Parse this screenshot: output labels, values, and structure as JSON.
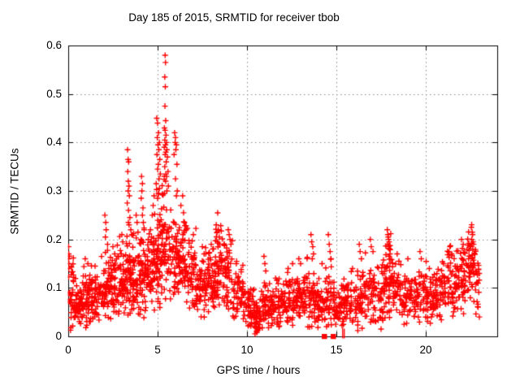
{
  "chart_data": {
    "type": "scatter",
    "title": "Day 185 of 2015, SRMTID for receiver tbob",
    "xlabel": "GPS time / hours",
    "ylabel": "SRMTID / TECUs",
    "xlim": [
      0,
      24
    ],
    "ylim": [
      0,
      0.6
    ],
    "x_ticks": [
      0,
      5,
      10,
      15,
      20
    ],
    "y_ticks": [
      0,
      0.1,
      0.2,
      0.3,
      0.4,
      0.5,
      0.6
    ],
    "grid": "dotted at every labeled tick",
    "legend": "none",
    "marker": "plus",
    "marker_color": "#ff0000",
    "grid_color": "#8a8a8a",
    "border_color": "#000000",
    "seed": 7,
    "band_segments_comment": "dense +-marker band: [t_start, t_end, center_TECU, half_spread_TECU, n_points]",
    "band_segments": [
      [
        0.0,
        0.3,
        0.085,
        0.045,
        34
      ],
      [
        0.3,
        0.8,
        0.06,
        0.028,
        50
      ],
      [
        0.8,
        1.3,
        0.08,
        0.035,
        50
      ],
      [
        1.3,
        1.8,
        0.072,
        0.03,
        48
      ],
      [
        1.8,
        2.3,
        0.095,
        0.042,
        50
      ],
      [
        2.3,
        2.8,
        0.1,
        0.042,
        50
      ],
      [
        2.8,
        3.2,
        0.11,
        0.045,
        45
      ],
      [
        3.2,
        3.6,
        0.125,
        0.055,
        48
      ],
      [
        3.6,
        4.0,
        0.115,
        0.05,
        46
      ],
      [
        4.0,
        4.4,
        0.125,
        0.05,
        48
      ],
      [
        4.4,
        4.8,
        0.14,
        0.05,
        48
      ],
      [
        4.8,
        5.2,
        0.165,
        0.065,
        55
      ],
      [
        5.2,
        5.6,
        0.195,
        0.075,
        55
      ],
      [
        5.6,
        6.2,
        0.165,
        0.065,
        60
      ],
      [
        6.2,
        6.7,
        0.145,
        0.05,
        52
      ],
      [
        6.7,
        7.2,
        0.125,
        0.045,
        50
      ],
      [
        7.2,
        7.8,
        0.105,
        0.04,
        52
      ],
      [
        7.8,
        8.2,
        0.115,
        0.045,
        45
      ],
      [
        8.2,
        8.6,
        0.145,
        0.05,
        48
      ],
      [
        8.6,
        9.2,
        0.125,
        0.048,
        52
      ],
      [
        9.2,
        9.8,
        0.085,
        0.035,
        48
      ],
      [
        9.8,
        10.4,
        0.06,
        0.028,
        46
      ],
      [
        10.4,
        10.8,
        0.038,
        0.024,
        38
      ],
      [
        10.8,
        11.3,
        0.06,
        0.028,
        46
      ],
      [
        11.3,
        12.0,
        0.065,
        0.028,
        56
      ],
      [
        12.0,
        12.6,
        0.068,
        0.03,
        50
      ],
      [
        12.6,
        13.2,
        0.075,
        0.033,
        50
      ],
      [
        13.2,
        13.8,
        0.08,
        0.038,
        50
      ],
      [
        13.8,
        14.4,
        0.068,
        0.032,
        46
      ],
      [
        14.4,
        14.9,
        0.08,
        0.042,
        40
      ],
      [
        14.9,
        15.4,
        0.058,
        0.028,
        36
      ],
      [
        15.4,
        16.0,
        0.068,
        0.032,
        48
      ],
      [
        16.0,
        16.6,
        0.078,
        0.038,
        46
      ],
      [
        16.6,
        17.2,
        0.088,
        0.04,
        46
      ],
      [
        17.2,
        17.7,
        0.085,
        0.04,
        40
      ],
      [
        17.7,
        18.1,
        0.12,
        0.05,
        44
      ],
      [
        18.1,
        18.7,
        0.09,
        0.04,
        46
      ],
      [
        18.7,
        19.3,
        0.08,
        0.035,
        46
      ],
      [
        19.3,
        19.9,
        0.085,
        0.035,
        46
      ],
      [
        19.9,
        20.6,
        0.08,
        0.035,
        52
      ],
      [
        20.6,
        21.2,
        0.09,
        0.04,
        46
      ],
      [
        21.2,
        21.7,
        0.1,
        0.044,
        44
      ],
      [
        21.7,
        22.3,
        0.115,
        0.048,
        50
      ],
      [
        22.3,
        22.8,
        0.145,
        0.052,
        50
      ],
      [
        22.8,
        23.0,
        0.1,
        0.04,
        18
      ]
    ],
    "spike_points_comment": "explicit [t, TECU] outlier/spike markers read off the plot",
    "spike_points": [
      [
        0.02,
        0.185
      ],
      [
        0.03,
        0.17
      ],
      [
        0.02,
        0.16
      ],
      [
        0.04,
        0.15
      ],
      [
        0.03,
        0.14
      ],
      [
        0.95,
        0.16
      ],
      [
        1.1,
        0.15
      ],
      [
        1.5,
        0.145
      ],
      [
        2.05,
        0.25
      ],
      [
        2.1,
        0.235
      ],
      [
        2.12,
        0.22
      ],
      [
        2.08,
        0.205
      ],
      [
        2.2,
        0.19
      ],
      [
        2.5,
        0.185
      ],
      [
        2.6,
        0.17
      ],
      [
        3.0,
        0.21
      ],
      [
        3.05,
        0.195
      ],
      [
        3.32,
        0.385
      ],
      [
        3.35,
        0.365
      ],
      [
        3.38,
        0.36
      ],
      [
        3.33,
        0.34
      ],
      [
        3.36,
        0.32
      ],
      [
        3.4,
        0.31
      ],
      [
        3.35,
        0.3
      ],
      [
        3.42,
        0.29
      ],
      [
        3.3,
        0.275
      ],
      [
        3.37,
        0.26
      ],
      [
        3.45,
        0.245
      ],
      [
        3.4,
        0.23
      ],
      [
        3.5,
        0.22
      ],
      [
        3.55,
        0.21
      ],
      [
        3.8,
        0.25
      ],
      [
        3.85,
        0.235
      ],
      [
        3.9,
        0.215
      ],
      [
        4.1,
        0.33
      ],
      [
        4.15,
        0.315
      ],
      [
        4.12,
        0.3
      ],
      [
        4.08,
        0.285
      ],
      [
        4.18,
        0.265
      ],
      [
        4.15,
        0.25
      ],
      [
        4.2,
        0.235
      ],
      [
        4.25,
        0.22
      ],
      [
        4.6,
        0.22
      ],
      [
        4.7,
        0.25
      ],
      [
        4.75,
        0.27
      ],
      [
        4.8,
        0.29
      ],
      [
        4.95,
        0.45
      ],
      [
        5.0,
        0.44
      ],
      [
        5.05,
        0.42
      ],
      [
        4.98,
        0.41
      ],
      [
        5.1,
        0.4
      ],
      [
        5.02,
        0.395
      ],
      [
        5.07,
        0.385
      ],
      [
        4.96,
        0.375
      ],
      [
        5.12,
        0.365
      ],
      [
        5.04,
        0.355
      ],
      [
        5.0,
        0.345
      ],
      [
        5.15,
        0.335
      ],
      [
        5.08,
        0.325
      ],
      [
        4.92,
        0.315
      ],
      [
        5.1,
        0.305
      ],
      [
        5.05,
        0.295
      ],
      [
        5.0,
        0.285
      ],
      [
        5.42,
        0.58
      ],
      [
        5.44,
        0.565
      ],
      [
        5.4,
        0.535
      ],
      [
        5.43,
        0.515
      ],
      [
        5.41,
        0.475
      ],
      [
        5.45,
        0.445
      ],
      [
        5.38,
        0.43
      ],
      [
        5.42,
        0.425
      ],
      [
        5.47,
        0.415
      ],
      [
        5.4,
        0.405
      ],
      [
        5.5,
        0.4
      ],
      [
        5.44,
        0.395
      ],
      [
        5.37,
        0.39
      ],
      [
        5.52,
        0.385
      ],
      [
        5.46,
        0.38
      ],
      [
        5.42,
        0.375
      ],
      [
        5.55,
        0.37
      ],
      [
        5.48,
        0.36
      ],
      [
        5.4,
        0.35
      ],
      [
        5.58,
        0.34
      ],
      [
        5.5,
        0.33
      ],
      [
        5.45,
        0.32
      ],
      [
        5.6,
        0.31
      ],
      [
        5.52,
        0.3
      ],
      [
        5.95,
        0.42
      ],
      [
        6.0,
        0.41
      ],
      [
        5.98,
        0.4
      ],
      [
        6.05,
        0.395
      ],
      [
        6.02,
        0.385
      ],
      [
        5.92,
        0.375
      ],
      [
        6.08,
        0.355
      ],
      [
        6.0,
        0.325
      ],
      [
        6.1,
        0.3
      ],
      [
        6.05,
        0.29
      ],
      [
        6.3,
        0.27
      ],
      [
        6.4,
        0.29
      ],
      [
        6.45,
        0.255
      ],
      [
        6.5,
        0.235
      ],
      [
        6.6,
        0.22
      ],
      [
        7.0,
        0.21
      ],
      [
        7.5,
        0.185
      ],
      [
        7.6,
        0.17
      ],
      [
        8.0,
        0.19
      ],
      [
        8.28,
        0.23
      ],
      [
        8.32,
        0.215
      ],
      [
        8.4,
        0.22
      ],
      [
        8.45,
        0.205
      ],
      [
        8.35,
        0.195
      ],
      [
        8.95,
        0.22
      ],
      [
        9.0,
        0.21
      ],
      [
        9.05,
        0.2
      ],
      [
        9.1,
        0.19
      ],
      [
        9.4,
        0.15
      ],
      [
        10.95,
        0.165
      ],
      [
        11.0,
        0.15
      ],
      [
        11.05,
        0.135
      ],
      [
        11.6,
        0.12
      ],
      [
        12.3,
        0.14
      ],
      [
        12.55,
        0.15
      ],
      [
        12.9,
        0.16
      ],
      [
        13.0,
        0.15
      ],
      [
        13.58,
        0.21
      ],
      [
        13.62,
        0.195
      ],
      [
        13.68,
        0.185
      ],
      [
        13.72,
        0.17
      ],
      [
        13.65,
        0.16
      ],
      [
        14.2,
        0.15
      ],
      [
        14.55,
        0.21
      ],
      [
        14.6,
        0.19
      ],
      [
        14.65,
        0.175
      ],
      [
        14.7,
        0.16
      ],
      [
        15.9,
        0.14
      ],
      [
        16.28,
        0.19
      ],
      [
        16.33,
        0.175
      ],
      [
        16.4,
        0.16
      ],
      [
        16.9,
        0.2
      ],
      [
        16.95,
        0.185
      ],
      [
        17.05,
        0.175
      ],
      [
        17.85,
        0.22
      ],
      [
        17.88,
        0.21
      ],
      [
        17.9,
        0.205
      ],
      [
        17.92,
        0.2
      ],
      [
        17.95,
        0.195
      ],
      [
        17.87,
        0.19
      ],
      [
        17.93,
        0.185
      ],
      [
        17.98,
        0.18
      ],
      [
        18.0,
        0.17
      ],
      [
        18.4,
        0.17
      ],
      [
        18.5,
        0.155
      ],
      [
        19.0,
        0.16
      ],
      [
        19.68,
        0.175
      ],
      [
        19.75,
        0.16
      ],
      [
        20.2,
        0.14
      ],
      [
        21.0,
        0.15
      ],
      [
        21.35,
        0.185
      ],
      [
        21.45,
        0.17
      ],
      [
        22.0,
        0.2
      ],
      [
        22.1,
        0.19
      ],
      [
        22.55,
        0.225
      ],
      [
        22.6,
        0.215
      ],
      [
        22.62,
        0.21
      ],
      [
        22.57,
        0.2
      ],
      [
        22.65,
        0.195
      ],
      [
        22.68,
        0.19
      ],
      [
        22.52,
        0.185
      ],
      [
        22.63,
        0.18
      ],
      [
        10.55,
        0.008
      ],
      [
        10.6,
        0.012
      ],
      [
        10.65,
        0.018
      ],
      [
        16.2,
        0.012
      ],
      [
        17.5,
        0.015
      ],
      [
        14.45,
        0.02
      ]
    ],
    "square_points_comment": "filled red squares sitting on the x-axis (value 0)",
    "square_points": [
      [
        14.32,
        0
      ],
      [
        14.82,
        0
      ]
    ],
    "clipped_zero_bars_comment": "markers clipped at axis, only vertical strokes visible",
    "clipped_zero_bars": [
      [
        15.35,
        0.012
      ],
      [
        15.44,
        0.01
      ]
    ]
  }
}
